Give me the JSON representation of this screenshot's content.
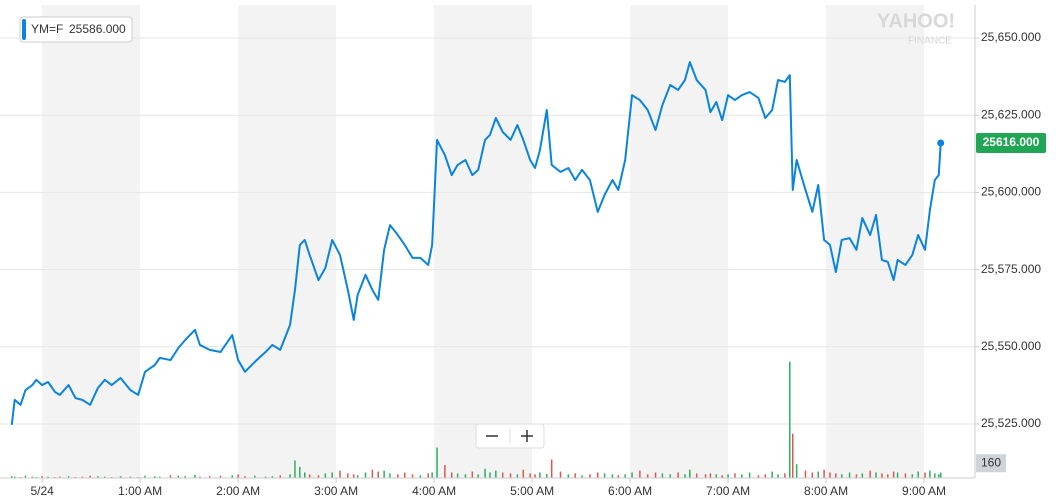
{
  "chart_data": {
    "type": "line",
    "x": [
      -0.31,
      -0.28,
      -0.22,
      -0.17,
      -0.1,
      -0.06,
      0,
      0.06,
      0.13,
      0.18,
      0.27,
      0.34,
      0.41,
      0.49,
      0.57,
      0.64,
      0.71,
      0.8,
      0.9,
      0.98,
      1.05,
      1.15,
      1.2,
      1.31,
      1.39,
      1.46,
      1.56,
      1.61,
      1.71,
      1.82,
      1.94,
      2.0,
      2.07,
      2.17,
      2.28,
      2.35,
      2.43,
      2.53,
      2.58,
      2.63,
      2.68,
      2.73,
      2.82,
      2.89,
      2.96,
      3.04,
      3.12,
      3.18,
      3.22,
      3.3,
      3.37,
      3.43,
      3.49,
      3.55,
      3.63,
      3.7,
      3.78,
      3.86,
      3.94,
      3.98,
      4.03,
      4.11,
      4.18,
      4.24,
      4.32,
      4.39,
      4.45,
      4.52,
      4.57,
      4.63,
      4.7,
      4.78,
      4.85,
      4.91,
      4.98,
      5.03,
      5.08,
      5.15,
      5.2,
      5.29,
      5.37,
      5.44,
      5.51,
      5.59,
      5.67,
      5.74,
      5.82,
      5.88,
      5.95,
      6.02,
      6.1,
      6.18,
      6.26,
      6.33,
      6.41,
      6.49,
      6.56,
      6.61,
      6.68,
      6.77,
      6.82,
      6.88,
      6.94,
      7.0,
      7.07,
      7.14,
      7.22,
      7.31,
      7.38,
      7.45,
      7.51,
      7.58,
      7.63,
      7.66,
      7.7,
      7.79,
      7.86,
      7.92,
      7.98,
      8.04,
      8.1,
      8.16,
      8.24,
      8.31,
      8.37,
      8.45,
      8.51,
      8.57,
      8.63,
      8.69,
      8.73,
      8.81,
      8.88,
      8.94,
      9.01,
      9.06,
      9.11,
      9.15,
      9.17
    ],
    "series": [
      {
        "name": "YM=F",
        "color": "#0a84dc",
        "values": [
          25524.7,
          25532.8,
          25531.2,
          25536.0,
          25537.6,
          25539.3,
          25537.6,
          25538.6,
          25535.4,
          25534.4,
          25537.6,
          25533.4,
          25532.8,
          25531.2,
          25536.7,
          25539.3,
          25537.6,
          25539.9,
          25536.0,
          25534.4,
          25541.9,
          25544.1,
          25546.4,
          25545.7,
          25549.6,
          25552.2,
          25555.5,
          25550.6,
          25549.0,
          25548.3,
          25553.8,
          25545.7,
          25541.9,
          25545.1,
          25548.3,
          25550.6,
          25549.0,
          25557.1,
          25568.4,
          25583.0,
          25584.6,
          25579.7,
          25571.6,
          25575.5,
          25584.6,
          25579.7,
          25568.4,
          25558.7,
          25566.8,
          25573.3,
          25568.4,
          25565.2,
          25581.4,
          25589.4,
          25586.2,
          25583.0,
          25578.8,
          25578.8,
          25576.5,
          25583.0,
          25617.0,
          25612.1,
          25605.6,
          25608.9,
          25610.5,
          25605.6,
          25607.3,
          25617.0,
          25618.6,
          25624.1,
          25619.6,
          25617.0,
          25621.8,
          25617.0,
          25610.5,
          25607.9,
          25613.7,
          25626.7,
          25608.9,
          25606.6,
          25607.9,
          25604.0,
          25607.3,
          25604.0,
          25593.7,
          25599.2,
          25604.0,
          25600.8,
          25610.5,
          25631.5,
          25629.9,
          25626.7,
          25620.2,
          25628.3,
          25634.8,
          25633.2,
          25636.4,
          25642.2,
          25636.4,
          25633.2,
          25626.0,
          25629.3,
          25623.4,
          25631.5,
          25629.9,
          25631.5,
          25632.5,
          25630.6,
          25624.1,
          25626.7,
          25636.4,
          25635.8,
          25638.0,
          25600.8,
          25610.5,
          25600.8,
          25593.7,
          25602.4,
          25584.6,
          25583.0,
          25574.2,
          25584.6,
          25585.2,
          25581.4,
          25591.7,
          25586.2,
          25592.7,
          25578.1,
          25577.5,
          25571.6,
          25578.1,
          25576.5,
          25579.7,
          25586.2,
          25581.4,
          25594.3,
          25604.0,
          25605.6,
          25616.0
        ]
      }
    ],
    "legend_value": "25586.000",
    "last_value_label": "25616.000",
    "ylim": [
      25507.5,
      25660.7
    ],
    "yticks": [
      {
        "value": 25525,
        "label": "25,525.000"
      },
      {
        "value": 25550,
        "label": "25,550.000"
      },
      {
        "value": 25575,
        "label": "25,575.000"
      },
      {
        "value": 25600,
        "label": "25,600.000"
      },
      {
        "value": 25625,
        "label": "25,625.000"
      },
      {
        "value": 25650,
        "label": "25,650.000"
      }
    ],
    "xlim": [
      -0.43,
      9.52
    ],
    "xticks": [
      {
        "value": 0,
        "label": "5/24"
      },
      {
        "value": 1,
        "label": "1:00 AM"
      },
      {
        "value": 2,
        "label": "2:00 AM"
      },
      {
        "value": 3,
        "label": "3:00 AM"
      },
      {
        "value": 4,
        "label": "4:00 AM"
      },
      {
        "value": 5,
        "label": "5:00 AM"
      },
      {
        "value": 6,
        "label": "6:00 AM"
      },
      {
        "value": 7,
        "label": "7:00 AM"
      },
      {
        "value": 8,
        "label": "8:00 AM"
      },
      {
        "value": 9,
        "label": "9:00 AM"
      }
    ],
    "grid": true,
    "volume": {
      "up_color": "#2fae60",
      "down_color": "#e0574f",
      "ylim": [
        0,
        1300
      ],
      "ticks": [
        160
      ],
      "values": [
        20,
        15,
        10,
        25,
        15,
        10,
        20,
        15,
        10,
        15,
        20,
        10,
        15,
        25,
        20,
        15,
        10,
        20,
        15,
        10,
        25,
        20,
        15,
        30,
        25,
        20,
        35,
        15,
        20,
        25,
        30,
        40,
        20,
        25,
        15,
        20,
        30,
        40,
        190,
        120,
        60,
        40,
        30,
        50,
        60,
        80,
        50,
        40,
        30,
        60,
        90,
        70,
        80,
        50,
        40,
        60,
        40,
        30,
        50,
        60,
        330,
        140,
        60,
        50,
        40,
        70,
        40,
        100,
        60,
        80,
        60,
        50,
        40,
        90,
        50,
        40,
        60,
        45,
        200,
        70,
        40,
        50,
        30,
        40,
        60,
        50,
        40,
        30,
        40,
        60,
        80,
        40,
        60,
        50,
        40,
        60,
        40,
        90,
        50,
        40,
        50,
        40,
        30,
        40,
        50,
        40,
        60,
        30,
        40,
        70,
        40,
        50,
        1260,
        480,
        150,
        80,
        60,
        70,
        90,
        60,
        50,
        40,
        60,
        40,
        50,
        80,
        60,
        50,
        40,
        70,
        60,
        50,
        40,
        70,
        60,
        80,
        50,
        40,
        60
      ]
    },
    "watermark": [
      "YAHOO!",
      "FINANCE"
    ]
  }
}
